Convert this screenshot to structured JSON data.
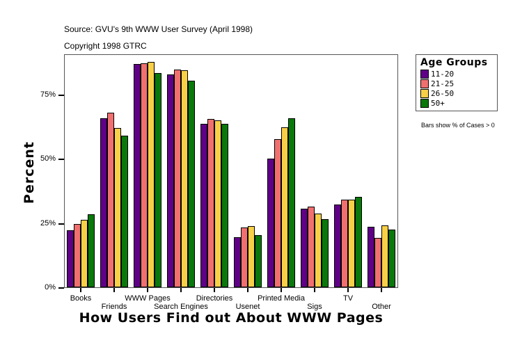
{
  "header": {
    "source": "Source: GVU's 9th WWW User Survey (April 1998)",
    "copyright": "Copyright 1998 GTRC"
  },
  "legend": {
    "title": "Age Groups",
    "items": [
      {
        "label": "11-20",
        "color": "#5f0087"
      },
      {
        "label": "21-25",
        "color": "#f07070"
      },
      {
        "label": "26-50",
        "color": "#f8d048"
      },
      {
        "label": "50+",
        "color": "#0a780a"
      }
    ],
    "note": "Bars show % of Cases > 0"
  },
  "axes": {
    "y_title": "Percent",
    "x_title": "How Users Find out About WWW Pages",
    "y_ticks": [
      "0%",
      "25%",
      "50%",
      "75%"
    ]
  },
  "chart_data": {
    "type": "bar",
    "title": "How Users Find out About WWW Pages",
    "subtitle": "Source: GVU's 9th WWW User Survey (April 1998); Copyright 1998 GTRC",
    "xlabel": "How Users Find out About WWW Pages",
    "ylabel": "Percent",
    "ylim": [
      0,
      90
    ],
    "y_tick_labels": [
      "0%",
      "25%",
      "50%",
      "75%"
    ],
    "grid": false,
    "legend_position": "right",
    "legend_title": "Age Groups",
    "annotation": "Bars show % of Cases > 0",
    "categories": [
      "Books",
      "Friends",
      "WWW Pages",
      "Search Engines",
      "Directories",
      "Usenet",
      "Printed Media",
      "Sigs",
      "TV",
      "Other"
    ],
    "series": [
      {
        "name": "11-20",
        "color": "#5f0087",
        "values": [
          22.0,
          65.5,
          86.6,
          82.6,
          63.4,
          19.2,
          49.8,
          30.3,
          32.0,
          23.3
        ]
      },
      {
        "name": "21-25",
        "color": "#f07070",
        "values": [
          24.4,
          67.7,
          86.9,
          84.4,
          65.3,
          23.0,
          57.4,
          31.1,
          33.8,
          19.0
        ]
      },
      {
        "name": "26-50",
        "color": "#f8d048",
        "values": [
          26.0,
          61.7,
          87.5,
          84.1,
          64.7,
          23.6,
          62.0,
          28.4,
          33.8,
          23.8
        ]
      },
      {
        "name": "50+",
        "color": "#0a780a",
        "values": [
          28.2,
          58.8,
          83.1,
          80.2,
          63.4,
          20.0,
          65.5,
          26.3,
          34.9,
          22.2
        ]
      }
    ]
  }
}
